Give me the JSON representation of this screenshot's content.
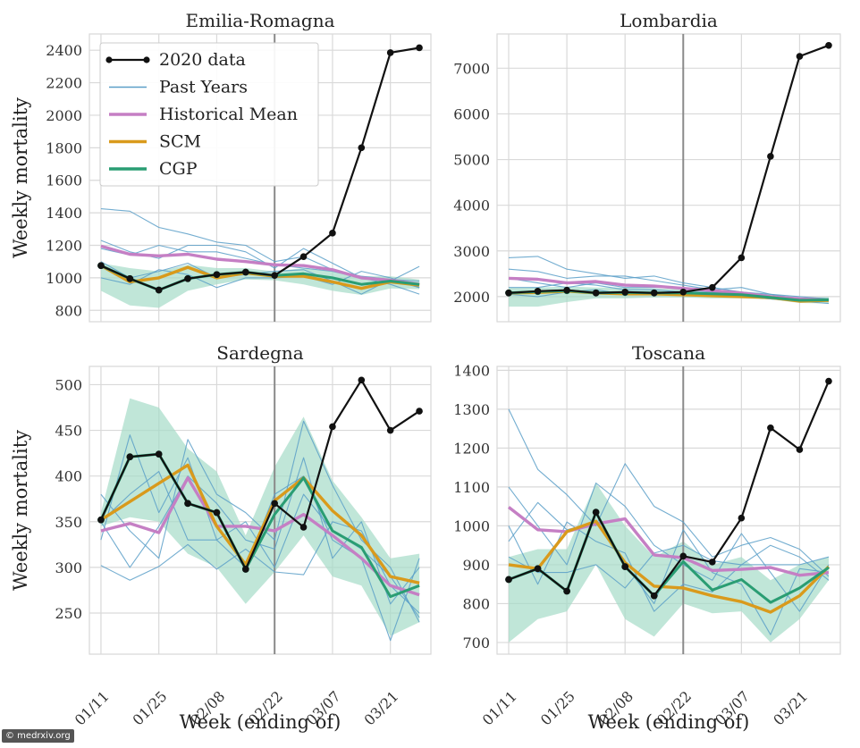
{
  "colors": {
    "data2020": "#111111",
    "past": "#5b9fc8",
    "mean": "#c57fc4",
    "scm": "#d99a1c",
    "cgp": "#2a9d73",
    "band": "#a5dcc8",
    "vline": "#8a8a8a"
  },
  "watermark": "© medrxiv.org",
  "xlabel": "Week (ending of)",
  "ylabel": "Weekly mortality",
  "legend": {
    "placement": "upper-left of Emilia-Romagna panel",
    "entries": [
      "2020 data",
      "Past Years",
      "Historical Mean",
      "SCM",
      "CGP"
    ]
  },
  "chart_data": [
    {
      "type": "line",
      "title": "Emilia-Romagna",
      "ylabel": "Weekly mortality",
      "xlabel": "",
      "x": [
        1,
        2,
        3,
        4,
        5,
        6,
        7,
        8,
        9,
        10,
        11,
        12
      ],
      "xticks": [
        1,
        3,
        5,
        7,
        9,
        11
      ],
      "xticklabels": [
        "01/11",
        "01/25",
        "02/08",
        "02/22",
        "03/07",
        "03/21"
      ],
      "show_xticklabels": false,
      "xlim": [
        0.6,
        12.4
      ],
      "ylim": [
        730,
        2500
      ],
      "yticks": [
        800,
        1000,
        1200,
        1400,
        1600,
        1800,
        2000,
        2200,
        2400
      ],
      "vline": 7,
      "grid": true,
      "series": [
        {
          "name": "2020 data",
          "kind": "data2020",
          "values": [
            1075,
            995,
            925,
            995,
            1020,
            1035,
            1015,
            1130,
            1275,
            1800,
            2385,
            2415
          ]
        },
        {
          "name": "Past Years",
          "kind": "past",
          "values": [
            1425,
            1410,
            1310,
            1270,
            1220,
            1200,
            1100,
            1130,
            1050,
            1010,
            990,
            940
          ]
        },
        {
          "kind": "past",
          "values": [
            1230,
            1160,
            1120,
            1200,
            1200,
            1160,
            1060,
            1180,
            1090,
            1000,
            980,
            1070
          ]
        },
        {
          "kind": "past",
          "values": [
            1180,
            1140,
            1200,
            1160,
            1160,
            1120,
            1080,
            1060,
            1040,
            1000,
            960,
            900
          ]
        },
        {
          "kind": "past",
          "values": [
            1100,
            1000,
            1040,
            1090,
            1000,
            1020,
            1040,
            1050,
            980,
            900,
            990,
            980
          ]
        },
        {
          "kind": "past",
          "values": [
            1000,
            960,
            1050,
            1020,
            940,
            1000,
            1000,
            1010,
            960,
            1040,
            1000,
            940
          ]
        },
        {
          "name": "Historical Mean",
          "kind": "mean",
          "values": [
            1195,
            1145,
            1135,
            1145,
            1115,
            1100,
            1080,
            1075,
            1050,
            1000,
            985,
            960
          ]
        },
        {
          "name": "SCM",
          "kind": "scm",
          "values": [
            1075,
            975,
            1000,
            1065,
            1000,
            1030,
            1010,
            1010,
            975,
            935,
            975,
            955
          ]
        },
        {
          "name": "CGP",
          "kind": "cgp",
          "values": [
            1075,
            995,
            925,
            995,
            1020,
            1035,
            1015,
            1025,
            1000,
            960,
            980,
            960
          ]
        }
      ],
      "band": {
        "upper": [
          1090,
          1060,
          1040,
          1080,
          1060,
          1060,
          1040,
          1060,
          1040,
          1010,
          1010,
          990
        ],
        "lower": [
          920,
          830,
          815,
          920,
          960,
          990,
          985,
          960,
          920,
          895,
          935,
          930
        ]
      }
    },
    {
      "type": "line",
      "title": "Lombardia",
      "ylabel": "",
      "xlabel": "",
      "x": [
        1,
        2,
        3,
        4,
        5,
        6,
        7,
        8,
        9,
        10,
        11,
        12
      ],
      "xticks": [
        1,
        3,
        5,
        7,
        9,
        11
      ],
      "xticklabels": [
        "01/11",
        "01/25",
        "02/08",
        "02/22",
        "03/07",
        "03/21"
      ],
      "show_xticklabels": false,
      "xlim": [
        0.6,
        12.4
      ],
      "ylim": [
        1450,
        7750
      ],
      "yticks": [
        2000,
        3000,
        4000,
        5000,
        6000,
        7000
      ],
      "vline": 7,
      "grid": true,
      "series": [
        {
          "name": "2020 data",
          "kind": "data2020",
          "values": [
            2080,
            2120,
            2140,
            2080,
            2100,
            2080,
            2100,
            2200,
            2850,
            5070,
            7260,
            7500
          ]
        },
        {
          "name": "Past Years",
          "kind": "past",
          "values": [
            2850,
            2880,
            2600,
            2500,
            2400,
            2450,
            2300,
            2200,
            2100,
            2050,
            2000,
            1950
          ]
        },
        {
          "kind": "past",
          "values": [
            2600,
            2550,
            2400,
            2450,
            2450,
            2350,
            2250,
            2150,
            2200,
            2050,
            1950,
            1900
          ]
        },
        {
          "kind": "past",
          "values": [
            2400,
            2300,
            2200,
            2300,
            2200,
            2200,
            2200,
            2100,
            2100,
            2000,
            1950,
            1950
          ]
        },
        {
          "kind": "past",
          "values": [
            2200,
            2200,
            2300,
            2250,
            2150,
            2150,
            2100,
            2100,
            2000,
            1950,
            1900,
            1850
          ]
        },
        {
          "kind": "past",
          "values": [
            2050,
            2000,
            2100,
            2150,
            2050,
            2100,
            2050,
            2000,
            2000,
            1950,
            1900,
            1950
          ]
        },
        {
          "name": "Historical Mean",
          "kind": "mean",
          "values": [
            2400,
            2380,
            2300,
            2330,
            2250,
            2230,
            2180,
            2130,
            2080,
            2000,
            1950,
            1920
          ]
        },
        {
          "name": "SCM",
          "kind": "scm",
          "values": [
            2080,
            2090,
            2120,
            2080,
            2060,
            2060,
            2040,
            2020,
            2000,
            1980,
            1900,
            1920
          ]
        },
        {
          "name": "CGP",
          "kind": "cgp",
          "values": [
            2080,
            2110,
            2130,
            2080,
            2090,
            2080,
            2080,
            2060,
            2040,
            1980,
            1920,
            1930
          ]
        }
      ],
      "band": {
        "upper": [
          2200,
          2200,
          2220,
          2200,
          2200,
          2180,
          2160,
          2130,
          2100,
          2050,
          1980,
          1990
        ],
        "lower": [
          1780,
          1780,
          1880,
          1960,
          1960,
          1980,
          1980,
          1960,
          1960,
          1940,
          1860,
          1850
        ]
      }
    },
    {
      "type": "line",
      "title": "Sardegna",
      "ylabel": "Weekly mortality",
      "xlabel": "Week (ending of)",
      "x": [
        1,
        2,
        3,
        4,
        5,
        6,
        7,
        8,
        9,
        10,
        11,
        12
      ],
      "xticks": [
        1,
        3,
        5,
        7,
        9,
        11
      ],
      "xticklabels": [
        "01/11",
        "01/25",
        "02/08",
        "02/22",
        "03/07",
        "03/21"
      ],
      "show_xticklabels": true,
      "xlim": [
        0.6,
        12.4
      ],
      "ylim": [
        205,
        520
      ],
      "yticks": [
        250,
        300,
        350,
        400,
        450,
        500
      ],
      "vline": 7,
      "grid": true,
      "series": [
        {
          "name": "2020 data",
          "kind": "data2020",
          "values": [
            352,
            421,
            424,
            370,
            360,
            298,
            370,
            344,
            454,
            505,
            450,
            471
          ]
        },
        {
          "name": "Past Years",
          "kind": "past",
          "values": [
            302,
            286,
            301,
            325,
            298,
            320,
            295,
            292,
            350,
            340,
            280,
            250
          ]
        },
        {
          "kind": "past",
          "values": [
            380,
            340,
            310,
            440,
            380,
            360,
            330,
            460,
            390,
            330,
            300,
            240
          ]
        },
        {
          "kind": "past",
          "values": [
            330,
            445,
            360,
            420,
            330,
            300,
            380,
            400,
            330,
            310,
            220,
            310
          ]
        },
        {
          "kind": "past",
          "values": [
            350,
            300,
            345,
            400,
            370,
            330,
            320,
            420,
            310,
            350,
            260,
            300
          ]
        },
        {
          "kind": "past",
          "values": [
            350,
            380,
            405,
            330,
            330,
            350,
            300,
            380,
            340,
            320,
            290,
            245
          ]
        },
        {
          "name": "Historical Mean",
          "kind": "mean",
          "values": [
            340,
            348,
            338,
            398,
            345,
            345,
            340,
            358,
            335,
            310,
            280,
            270
          ]
        },
        {
          "name": "SCM",
          "kind": "scm",
          "values": [
            352,
            372,
            392,
            412,
            345,
            303,
            373,
            398,
            362,
            335,
            290,
            283
          ]
        },
        {
          "name": "CGP",
          "kind": "cgp",
          "values": [
            352,
            421,
            424,
            370,
            360,
            298,
            358,
            398,
            340,
            322,
            268,
            280
          ]
        }
      ],
      "band": {
        "upper": [
          360,
          485,
          475,
          430,
          405,
          335,
          410,
          465,
          395,
          355,
          310,
          315
        ],
        "lower": [
          345,
          355,
          350,
          315,
          300,
          260,
          295,
          335,
          290,
          280,
          225,
          240
        ]
      }
    },
    {
      "type": "line",
      "title": "Toscana",
      "ylabel": "",
      "xlabel": "Week (ending of)",
      "x": [
        1,
        2,
        3,
        4,
        5,
        6,
        7,
        8,
        9,
        10,
        11,
        12
      ],
      "xticks": [
        1,
        3,
        5,
        7,
        9,
        11
      ],
      "xticklabels": [
        "01/11",
        "01/25",
        "02/08",
        "02/22",
        "03/07",
        "03/21"
      ],
      "show_xticklabels": true,
      "xlim": [
        0.6,
        12.4
      ],
      "ylim": [
        670,
        1410
      ],
      "yticks": [
        700,
        800,
        900,
        1000,
        1100,
        1200,
        1300,
        1400
      ],
      "vline": 7,
      "grid": true,
      "series": [
        {
          "name": "2020 data",
          "kind": "data2020",
          "values": [
            862,
            890,
            832,
            1035,
            895,
            820,
            922,
            907,
            1020,
            1252,
            1196,
            1372
          ]
        },
        {
          "name": "Past Years",
          "kind": "past",
          "values": [
            1300,
            1145,
            1080,
            1000,
            1160,
            1050,
            1010,
            920,
            950,
            970,
            940,
            870
          ]
        },
        {
          "kind": "past",
          "values": [
            1100,
            1000,
            900,
            1110,
            1050,
            950,
            900,
            860,
            980,
            880,
            780,
            900
          ]
        },
        {
          "kind": "past",
          "values": [
            960,
            1060,
            990,
            1010,
            900,
            800,
            990,
            880,
            850,
            720,
            890,
            880
          ]
        },
        {
          "kind": "past",
          "values": [
            1000,
            850,
            1010,
            960,
            930,
            780,
            850,
            830,
            900,
            900,
            900,
            920
          ]
        },
        {
          "kind": "past",
          "values": [
            920,
            880,
            880,
            900,
            840,
            930,
            950,
            910,
            900,
            950,
            920,
            860
          ]
        },
        {
          "name": "Historical Mean",
          "kind": "mean",
          "values": [
            1048,
            990,
            985,
            1005,
            1018,
            925,
            918,
            885,
            888,
            893,
            873,
            880
          ]
        },
        {
          "name": "SCM",
          "kind": "scm",
          "values": [
            900,
            890,
            985,
            1012,
            905,
            845,
            840,
            820,
            805,
            778,
            820,
            895
          ]
        },
        {
          "name": "CGP",
          "kind": "cgp",
          "values": [
            862,
            890,
            832,
            1035,
            895,
            820,
            908,
            835,
            862,
            803,
            840,
            893
          ]
        }
      ],
      "band": {
        "upper": [
          920,
          940,
          940,
          1110,
          1000,
          920,
          960,
          900,
          920,
          860,
          900,
          920
        ],
        "lower": [
          700,
          760,
          780,
          900,
          760,
          715,
          800,
          775,
          780,
          700,
          760,
          860
        ]
      }
    }
  ]
}
